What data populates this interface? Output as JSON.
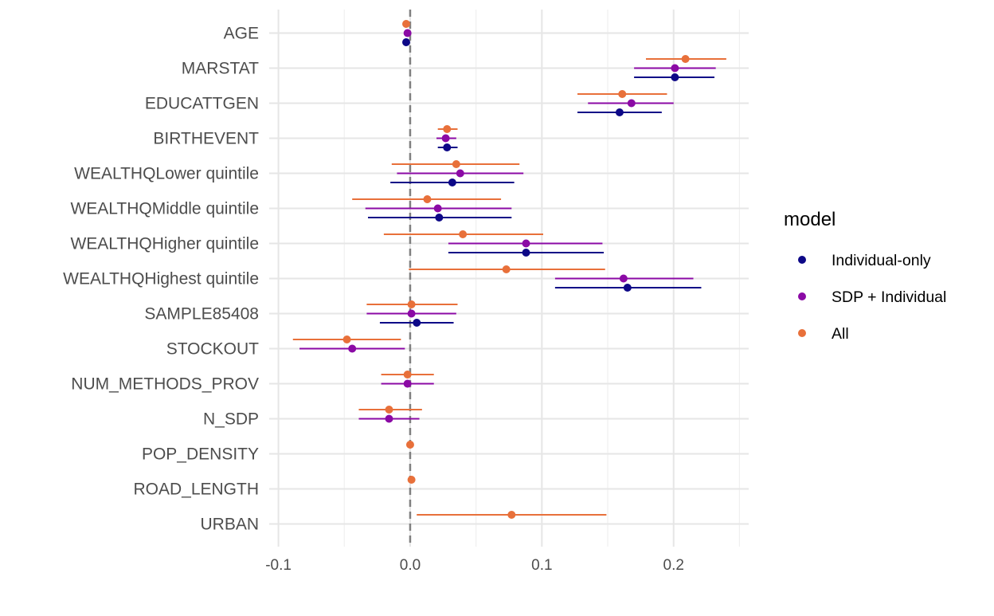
{
  "chart_data": {
    "type": "scatter",
    "subtype": "coefficient plot with horizontal confidence intervals",
    "categories": [
      "AGE",
      "MARSTAT",
      "EDUCATTGEN",
      "BIRTHEVENT",
      "WEALTHQLower quintile",
      "WEALTHQMiddle quintile",
      "WEALTHQHigher quintile",
      "WEALTHQHighest quintile",
      "SAMPLE85408",
      "STOCKOUT",
      "NUM_METHODS_PROV",
      "N_SDP",
      "POP_DENSITY",
      "ROAD_LENGTH",
      "URBAN"
    ],
    "x_ticks": [
      -0.1,
      0.0,
      0.1,
      0.2
    ],
    "x_tick_labels": [
      "-0.1",
      "0.0",
      "0.1",
      "0.2"
    ],
    "xlim": [
      -0.107,
      0.257
    ],
    "reference_line_x": 0,
    "grid": true,
    "legend": {
      "title": "model",
      "position": "right"
    },
    "series": [
      {
        "name": "Individual-only",
        "color": "#0d0887",
        "points": [
          {
            "category": "AGE",
            "estimate": -0.003,
            "low": -0.003,
            "high": -0.003
          },
          {
            "category": "MARSTAT",
            "estimate": 0.201,
            "low": 0.17,
            "high": 0.231
          },
          {
            "category": "EDUCATTGEN",
            "estimate": 0.159,
            "low": 0.127,
            "high": 0.191
          },
          {
            "category": "BIRTHEVENT",
            "estimate": 0.028,
            "low": 0.021,
            "high": 0.036
          },
          {
            "category": "WEALTHQLower quintile",
            "estimate": 0.032,
            "low": -0.015,
            "high": 0.079
          },
          {
            "category": "WEALTHQMiddle quintile",
            "estimate": 0.022,
            "low": -0.032,
            "high": 0.077
          },
          {
            "category": "WEALTHQHigher quintile",
            "estimate": 0.088,
            "low": 0.029,
            "high": 0.147
          },
          {
            "category": "WEALTHQHighest quintile",
            "estimate": 0.165,
            "low": 0.11,
            "high": 0.221
          },
          {
            "category": "SAMPLE85408",
            "estimate": 0.005,
            "low": -0.023,
            "high": 0.033
          }
        ]
      },
      {
        "name": "SDP + Individual",
        "color": "#8b0aa5",
        "points": [
          {
            "category": "AGE",
            "estimate": -0.002,
            "low": -0.002,
            "high": -0.002
          },
          {
            "category": "MARSTAT",
            "estimate": 0.201,
            "low": 0.17,
            "high": 0.232
          },
          {
            "category": "EDUCATTGEN",
            "estimate": 0.168,
            "low": 0.135,
            "high": 0.2
          },
          {
            "category": "BIRTHEVENT",
            "estimate": 0.027,
            "low": 0.02,
            "high": 0.035
          },
          {
            "category": "WEALTHQLower quintile",
            "estimate": 0.038,
            "low": -0.01,
            "high": 0.086
          },
          {
            "category": "WEALTHQMiddle quintile",
            "estimate": 0.021,
            "low": -0.034,
            "high": 0.077
          },
          {
            "category": "WEALTHQHigher quintile",
            "estimate": 0.088,
            "low": 0.029,
            "high": 0.146
          },
          {
            "category": "WEALTHQHighest quintile",
            "estimate": 0.162,
            "low": 0.11,
            "high": 0.215
          },
          {
            "category": "SAMPLE85408",
            "estimate": 0.001,
            "low": -0.033,
            "high": 0.035
          },
          {
            "category": "STOCKOUT",
            "estimate": -0.044,
            "low": -0.084,
            "high": -0.004
          },
          {
            "category": "NUM_METHODS_PROV",
            "estimate": -0.002,
            "low": -0.022,
            "high": 0.018
          },
          {
            "category": "N_SDP",
            "estimate": -0.016,
            "low": -0.039,
            "high": 0.007
          }
        ]
      },
      {
        "name": "All",
        "color": "#e8703a",
        "points": [
          {
            "category": "AGE",
            "estimate": -0.003,
            "low": -0.003,
            "high": -0.003
          },
          {
            "category": "MARSTAT",
            "estimate": 0.209,
            "low": 0.179,
            "high": 0.24
          },
          {
            "category": "EDUCATTGEN",
            "estimate": 0.161,
            "low": 0.127,
            "high": 0.195
          },
          {
            "category": "BIRTHEVENT",
            "estimate": 0.028,
            "low": 0.021,
            "high": 0.036
          },
          {
            "category": "WEALTHQLower quintile",
            "estimate": 0.035,
            "low": -0.014,
            "high": 0.083
          },
          {
            "category": "WEALTHQMiddle quintile",
            "estimate": 0.013,
            "low": -0.044,
            "high": 0.069
          },
          {
            "category": "WEALTHQHigher quintile",
            "estimate": 0.04,
            "low": -0.02,
            "high": 0.101
          },
          {
            "category": "WEALTHQHighest quintile",
            "estimate": 0.073,
            "low": -0.001,
            "high": 0.148
          },
          {
            "category": "SAMPLE85408",
            "estimate": 0.001,
            "low": -0.033,
            "high": 0.036
          },
          {
            "category": "STOCKOUT",
            "estimate": -0.048,
            "low": -0.089,
            "high": -0.007
          },
          {
            "category": "NUM_METHODS_PROV",
            "estimate": -0.002,
            "low": -0.022,
            "high": 0.018
          },
          {
            "category": "N_SDP",
            "estimate": -0.016,
            "low": -0.039,
            "high": 0.009
          },
          {
            "category": "POP_DENSITY",
            "estimate": 0.0,
            "low": 0.0,
            "high": 0.0
          },
          {
            "category": "ROAD_LENGTH",
            "estimate": 0.001,
            "low": 0.001,
            "high": 0.001
          },
          {
            "category": "URBAN",
            "estimate": 0.077,
            "low": 0.005,
            "high": 0.149
          }
        ]
      }
    ]
  }
}
